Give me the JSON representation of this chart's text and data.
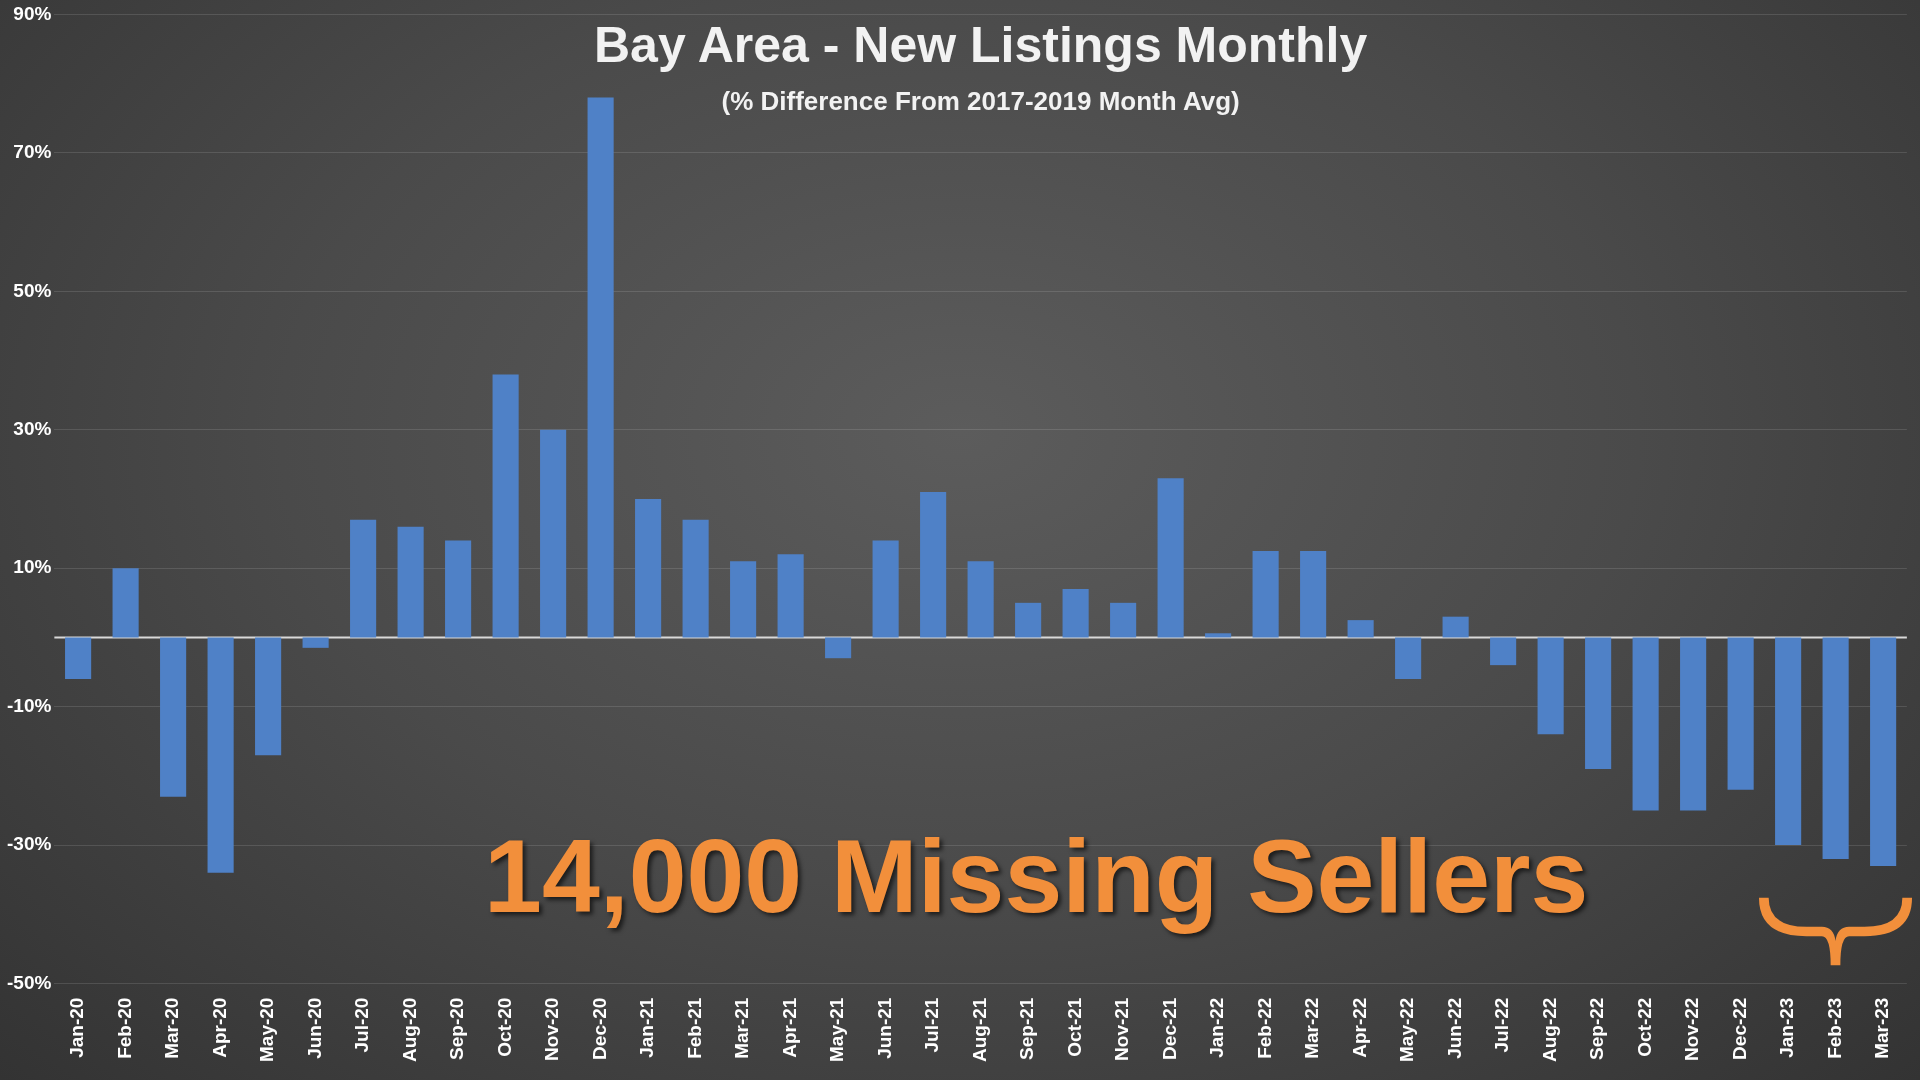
{
  "chart_data": {
    "type": "bar",
    "title": "Bay Area - New Listings Monthly",
    "subtitle": "(% Difference From 2017-2019 Month Avg)",
    "categories": [
      "Jan-20",
      "Feb-20",
      "Mar-20",
      "Apr-20",
      "May-20",
      "Jun-20",
      "Jul-20",
      "Aug-20",
      "Sep-20",
      "Oct-20",
      "Nov-20",
      "Dec-20",
      "Jan-21",
      "Feb-21",
      "Mar-21",
      "Apr-21",
      "May-21",
      "Jun-21",
      "Jul-21",
      "Aug-21",
      "Sep-21",
      "Oct-21",
      "Nov-21",
      "Dec-21",
      "Jan-22",
      "Feb-22",
      "Mar-22",
      "Apr-22",
      "May-22",
      "Jun-22",
      "Jul-22",
      "Aug-22",
      "Sep-22",
      "Oct-22",
      "Nov-22",
      "Dec-22",
      "Jan-23",
      "Feb-23",
      "Mar-23"
    ],
    "values": [
      -6,
      10,
      -23,
      -34,
      -17,
      -1.5,
      17,
      16,
      14,
      38,
      30,
      78,
      20,
      17,
      11,
      12,
      -3,
      14,
      21,
      11,
      5,
      7,
      5,
      23,
      0.6,
      12.5,
      12.5,
      2.5,
      -6,
      3,
      -4,
      -14,
      -19,
      -25,
      -25,
      -22,
      -30,
      -32,
      -33
    ],
    "color": "#4f81c7",
    "ylim": [
      -50,
      90
    ],
    "yticks": [
      {
        "value": -50,
        "label": "-50%"
      },
      {
        "value": -30,
        "label": "-30%"
      },
      {
        "value": -10,
        "label": "-10%"
      },
      {
        "value": 10,
        "label": "10%"
      },
      {
        "value": 30,
        "label": "30%"
      },
      {
        "value": 50,
        "label": "50%"
      },
      {
        "value": 70,
        "label": "70%"
      },
      {
        "value": 90,
        "label": "90%"
      }
    ],
    "grid": "y",
    "annotations": [
      "14,000 Missing Sellers"
    ]
  }
}
